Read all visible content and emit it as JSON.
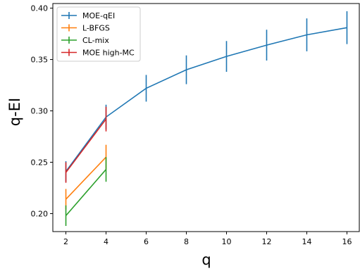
{
  "chart_data": {
    "type": "line",
    "xlabel": "q",
    "ylabel": "q-EI",
    "xlim": [
      1.35,
      16.65
    ],
    "ylim": [
      0.1825,
      0.4045
    ],
    "xticks": [
      2,
      4,
      6,
      8,
      10,
      12,
      14,
      16
    ],
    "yticks": [
      0.2,
      0.25,
      0.3,
      0.35,
      0.4
    ],
    "xtick_labels": [
      "2",
      "4",
      "6",
      "8",
      "10",
      "12",
      "14",
      "16"
    ],
    "ytick_labels": [
      "0.20",
      "0.25",
      "0.30",
      "0.35",
      "0.40"
    ],
    "legend_position": "top-left",
    "grid": false,
    "series": [
      {
        "name": "MOE-qEI",
        "color": "#1f77b4",
        "x": [
          2,
          4,
          6,
          8,
          10,
          12,
          14,
          16
        ],
        "y": [
          0.241,
          0.294,
          0.322,
          0.34,
          0.353,
          0.364,
          0.374,
          0.381
        ],
        "err": [
          0.01,
          0.012,
          0.013,
          0.014,
          0.015,
          0.015,
          0.016,
          0.016
        ]
      },
      {
        "name": "L-BFGS",
        "color": "#ff7f0e",
        "x": [
          2,
          4
        ],
        "y": [
          0.214,
          0.255
        ],
        "err": [
          0.01,
          0.012
        ]
      },
      {
        "name": "CL-mix",
        "color": "#2ca02c",
        "x": [
          2,
          4
        ],
        "y": [
          0.198,
          0.243
        ],
        "err": [
          0.01,
          0.012
        ]
      },
      {
        "name": "MOE high-MC",
        "color": "#d62728",
        "x": [
          2,
          4
        ],
        "y": [
          0.24,
          0.292
        ],
        "err": [
          0.01,
          0.012
        ]
      }
    ]
  }
}
